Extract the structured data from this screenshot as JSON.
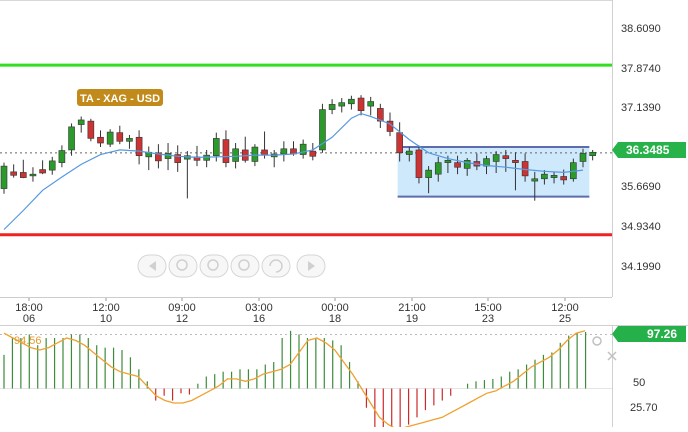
{
  "symbol_badge": "TA - XAG - USD",
  "price_axis": [
    "38.6090",
    "37.8740",
    "37.1390",
    "35.6690",
    "34.9340",
    "34.1990"
  ],
  "current_price": "36.3485",
  "date_axis": [
    {
      "time": "18:00",
      "day": "06"
    },
    {
      "time": "12:00",
      "day": "10"
    },
    {
      "time": "09:00",
      "day": "12"
    },
    {
      "time": "03:00",
      "day": "16"
    },
    {
      "time": "00:00",
      "day": "18"
    },
    {
      "time": "21:00",
      "day": "19"
    },
    {
      "time": "15:00",
      "day": "23"
    },
    {
      "time": "12:00",
      "day": "25"
    }
  ],
  "oscillator": {
    "left_value": "94.56",
    "current_value": "97.26",
    "axis": [
      "50",
      "25.70"
    ]
  },
  "colors": {
    "resistance": "#33dd22",
    "support": "#ee2222",
    "bull": "#2a9a2a",
    "bear": "#cc3333",
    "moving_average": "#5599e0",
    "range_box_fill": "#c6e4fb",
    "range_box_border": "#5c6cae",
    "badge": "#c18a1a",
    "price_badge": "#27b24a",
    "osc_badge": "#25b04a",
    "osc_line": "#f0a030",
    "osc_up": "#3c8c3c",
    "osc_down": "#cc2a2a"
  },
  "chart_data": {
    "type": "candlestick",
    "symbol": "XAG/USD",
    "ylim": [
      33.85,
      39.0
    ],
    "x_ticks": [
      "18:00 06",
      "12:00 10",
      "09:00 12",
      "03:00 16",
      "00:00 18",
      "21:00 19",
      "15:00 23",
      "12:00 25"
    ],
    "horizontal_levels": {
      "resistance": 37.87,
      "support": 34.93
    },
    "range_box": {
      "from_candle": 41,
      "to_candle": 59,
      "top": 36.45,
      "bottom": 35.59
    },
    "last_price": 36.3485,
    "candles": [
      [
        35.73,
        36.18,
        35.64,
        36.12
      ],
      [
        36.02,
        36.15,
        35.92,
        35.96
      ],
      [
        36.01,
        36.23,
        35.91,
        35.92
      ],
      [
        35.95,
        36.1,
        35.85,
        35.98
      ],
      [
        36.06,
        36.22,
        35.98,
        36.0
      ],
      [
        36.05,
        36.28,
        35.97,
        36.21
      ],
      [
        36.18,
        36.48,
        36.1,
        36.39
      ],
      [
        36.4,
        36.86,
        36.3,
        36.8
      ],
      [
        36.84,
        36.98,
        36.7,
        36.92
      ],
      [
        36.9,
        36.94,
        36.55,
        36.6
      ],
      [
        36.62,
        36.74,
        36.45,
        36.52
      ],
      [
        36.5,
        36.76,
        36.45,
        36.71
      ],
      [
        36.7,
        36.82,
        36.5,
        36.55
      ],
      [
        36.55,
        36.66,
        36.42,
        36.6
      ],
      [
        36.62,
        36.74,
        36.15,
        36.3
      ],
      [
        36.28,
        36.46,
        36.05,
        36.36
      ],
      [
        36.35,
        36.5,
        36.08,
        36.21
      ],
      [
        36.25,
        36.52,
        36.05,
        36.34
      ],
      [
        36.32,
        36.48,
        36.02,
        36.18
      ],
      [
        36.24,
        36.38,
        35.56,
        36.3
      ],
      [
        36.28,
        36.47,
        36.12,
        36.22
      ],
      [
        36.22,
        36.4,
        36.1,
        36.31
      ],
      [
        36.3,
        36.7,
        36.2,
        36.6
      ],
      [
        36.58,
        36.74,
        36.1,
        36.18
      ],
      [
        36.2,
        36.52,
        36.08,
        36.42
      ],
      [
        36.4,
        36.63,
        36.18,
        36.22
      ],
      [
        36.2,
        36.5,
        36.12,
        36.45
      ],
      [
        36.4,
        36.72,
        36.25,
        36.31
      ],
      [
        36.28,
        36.4,
        36.1,
        36.33
      ],
      [
        36.33,
        36.55,
        36.2,
        36.42
      ],
      [
        36.42,
        36.55,
        36.3,
        36.33
      ],
      [
        36.32,
        36.58,
        36.25,
        36.5
      ],
      [
        36.38,
        36.52,
        36.22,
        36.29
      ],
      [
        36.4,
        37.2,
        36.35,
        37.1
      ],
      [
        37.1,
        37.28,
        37.02,
        37.19
      ],
      [
        37.16,
        37.3,
        37.05,
        37.22
      ],
      [
        37.2,
        37.34,
        37.1,
        37.28
      ],
      [
        37.3,
        37.35,
        37.0,
        37.08
      ],
      [
        37.16,
        37.32,
        37.0,
        37.24
      ],
      [
        37.12,
        37.2,
        36.78,
        36.9
      ],
      [
        36.9,
        37.05,
        36.64,
        36.72
      ],
      [
        36.7,
        36.88,
        36.2,
        36.35
      ],
      [
        36.32,
        36.45,
        36.2,
        36.38
      ],
      [
        36.4,
        36.48,
        35.82,
        35.92
      ],
      [
        35.92,
        36.12,
        35.65,
        36.05
      ],
      [
        35.98,
        36.28,
        35.85,
        36.18
      ],
      [
        36.18,
        36.3,
        36.0,
        36.22
      ],
      [
        36.18,
        36.3,
        35.98,
        36.1
      ],
      [
        36.08,
        36.26,
        35.95,
        36.22
      ],
      [
        36.2,
        36.34,
        36.05,
        36.12
      ],
      [
        36.12,
        36.3,
        35.98,
        36.25
      ],
      [
        36.2,
        36.38,
        36.0,
        36.32
      ],
      [
        36.3,
        36.4,
        36.02,
        36.25
      ],
      [
        36.22,
        36.36,
        35.7,
        36.18
      ],
      [
        36.2,
        36.34,
        35.85,
        35.95
      ],
      [
        35.86,
        36.02,
        35.52,
        35.9
      ],
      [
        35.9,
        36.05,
        35.8,
        35.98
      ],
      [
        35.92,
        36.02,
        35.82,
        35.96
      ],
      [
        35.94,
        36.06,
        35.8,
        35.88
      ],
      [
        35.9,
        36.25,
        35.85,
        36.18
      ],
      [
        36.2,
        36.42,
        36.1,
        36.34
      ],
      [
        36.3,
        36.4,
        36.22,
        36.36
      ]
    ],
    "moving_average": [
      [
        0,
        35.02
      ],
      [
        2,
        35.35
      ],
      [
        4,
        35.7
      ],
      [
        6,
        35.93
      ],
      [
        8,
        36.15
      ],
      [
        10,
        36.32
      ],
      [
        12,
        36.4
      ],
      [
        14,
        36.38
      ],
      [
        16,
        36.33
      ],
      [
        18,
        36.29
      ],
      [
        20,
        36.27
      ],
      [
        22,
        36.28
      ],
      [
        24,
        36.29
      ],
      [
        26,
        36.31
      ],
      [
        28,
        36.31
      ],
      [
        30,
        36.33
      ],
      [
        32,
        36.4
      ],
      [
        34,
        36.62
      ],
      [
        36,
        36.95
      ],
      [
        37,
        37.03
      ],
      [
        38,
        36.98
      ],
      [
        40,
        36.85
      ],
      [
        42,
        36.58
      ],
      [
        44,
        36.35
      ],
      [
        46,
        36.25
      ],
      [
        48,
        36.18
      ],
      [
        50,
        36.13
      ],
      [
        52,
        36.1
      ],
      [
        54,
        36.06
      ],
      [
        56,
        36.03
      ],
      [
        58,
        36.01
      ],
      [
        60,
        36.05
      ]
    ],
    "oscillator": {
      "axis_labels": [
        "50",
        "25.70"
      ],
      "left_value": 94.56,
      "current_value": 97.26,
      "histogram": [
        78,
        92,
        92,
        95,
        86,
        92,
        92,
        92,
        95,
        95,
        92,
        86,
        84,
        84,
        82,
        76,
        66,
        56,
        40,
        44,
        40,
        46,
        45,
        54,
        60,
        62,
        64,
        64,
        66,
        66,
        66,
        70,
        72,
        92,
        98,
        95,
        92,
        92,
        92,
        90,
        86,
        72,
        56,
        34,
        16,
        10,
        16,
        18,
        20,
        26,
        32,
        36,
        40,
        44,
        50,
        54,
        56,
        57,
        58,
        60,
        64,
        66,
        70,
        74,
        78,
        80,
        88,
        94,
        96,
        97
      ],
      "signal": [
        96,
        92,
        88,
        84,
        82,
        84,
        88,
        92,
        90,
        86,
        80,
        74,
        68,
        64,
        62,
        60,
        52,
        44,
        40,
        38,
        38,
        40,
        44,
        48,
        52,
        58,
        58,
        56,
        58,
        62,
        64,
        66,
        70,
        80,
        90,
        92,
        88,
        82,
        72,
        62,
        50,
        38,
        26,
        20,
        16,
        18,
        20,
        22,
        24,
        26,
        30,
        34,
        38,
        42,
        46,
        48,
        52,
        56,
        62,
        68,
        72,
        76,
        82,
        90,
        96,
        98
      ]
    }
  }
}
